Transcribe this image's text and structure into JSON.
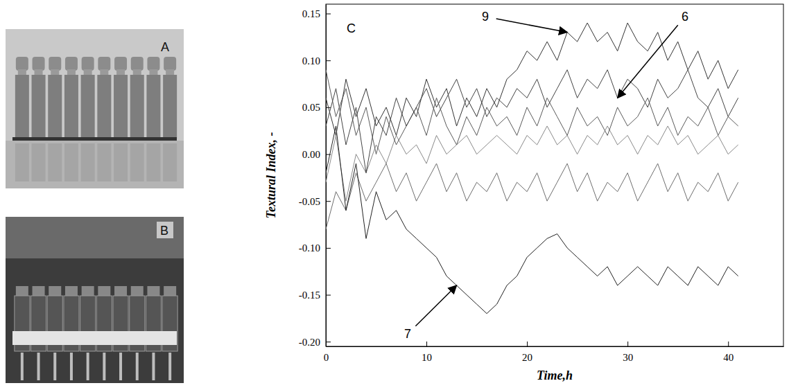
{
  "figure": {
    "panels": [
      "A",
      "B",
      "C"
    ]
  },
  "chart_data": {
    "type": "line",
    "x_label": "Time,h",
    "y_label": "Textural Index, -",
    "xlim": [
      0,
      45.5
    ],
    "ylim": [
      -0.205,
      0.16
    ],
    "xticks": [
      0,
      10,
      20,
      30,
      40
    ],
    "yticks": [
      {
        "value": -0.2,
        "label": "-0.20"
      },
      {
        "value": -0.15,
        "label": "-0.15"
      },
      {
        "value": -0.1,
        "label": "-0.10"
      },
      {
        "value": -0.05,
        "label": "-0.05"
      },
      {
        "value": 0,
        "label": "0.00"
      },
      {
        "value": 0.05,
        "label": "0.05"
      },
      {
        "value": 0.1,
        "label": "0.10"
      },
      {
        "value": 0.15,
        "label": "0.15"
      }
    ],
    "grid": false,
    "x": [
      0,
      1,
      2,
      3,
      4,
      5,
      6,
      7,
      8,
      9,
      10,
      11,
      12,
      13,
      14,
      15,
      16,
      17,
      18,
      19,
      20,
      21,
      22,
      23,
      24,
      25,
      26,
      27,
      28,
      29,
      30,
      31,
      32,
      33,
      34,
      35,
      36,
      37,
      38,
      39,
      40,
      41
    ],
    "series": [
      {
        "color": "#8a8a8a",
        "values": [
          -0.03,
          0.02,
          -0.05,
          0.0,
          -0.02,
          0.01,
          -0.01,
          0.02,
          0.0,
          0.01,
          -0.01,
          0.02,
          0.0,
          0.01,
          0.02,
          0.0,
          0.01,
          0.02,
          0.01,
          0.0,
          0.02,
          0.01,
          0.03,
          0.01,
          0.02,
          0.0,
          0.02,
          0.01,
          0.03,
          0.01,
          0.02,
          0.0,
          0.02,
          0.01,
          0.03,
          0.01,
          0.02,
          0.0,
          0.01,
          0.02,
          0.0,
          0.01
        ]
      },
      {
        "color": "#6e6e6e",
        "values": [
          -0.08,
          -0.04,
          -0.06,
          -0.02,
          -0.05,
          -0.03,
          -0.01,
          -0.04,
          -0.02,
          -0.05,
          -0.03,
          -0.01,
          -0.04,
          -0.02,
          -0.05,
          -0.03,
          -0.04,
          -0.02,
          -0.05,
          -0.03,
          -0.04,
          -0.02,
          -0.05,
          -0.03,
          -0.01,
          -0.04,
          -0.02,
          -0.05,
          -0.03,
          -0.04,
          -0.02,
          -0.05,
          -0.03,
          -0.01,
          -0.04,
          -0.02,
          -0.05,
          -0.03,
          -0.04,
          -0.02,
          -0.05,
          -0.03
        ]
      },
      {
        "color": "#5a5a5a",
        "values": [
          0.09,
          0.04,
          0.07,
          0.02,
          0.05,
          0.0,
          0.04,
          0.01,
          0.03,
          0.05,
          0.02,
          0.06,
          0.03,
          0.01,
          0.04,
          0.02,
          0.05,
          0.03,
          0.04,
          0.02,
          0.05,
          0.03,
          0.06,
          0.04,
          0.02,
          0.05,
          0.03,
          0.04,
          0.02,
          0.05,
          0.03,
          0.04,
          0.06,
          0.03,
          0.05,
          0.02,
          0.04,
          0.03,
          0.05,
          0.02,
          0.04,
          0.03
        ]
      },
      {
        "name": "9",
        "color": "#333333",
        "values": [
          0.06,
          0.02,
          0.08,
          0.04,
          0.07,
          0.03,
          0.05,
          0.02,
          0.06,
          0.04,
          0.08,
          0.05,
          0.07,
          0.03,
          0.06,
          0.04,
          0.07,
          0.05,
          0.08,
          0.09,
          0.11,
          0.1,
          0.12,
          0.1,
          0.13,
          0.12,
          0.14,
          0.12,
          0.13,
          0.11,
          0.14,
          0.12,
          0.11,
          0.13,
          0.1,
          0.12,
          0.09,
          0.11,
          0.08,
          0.1,
          0.07,
          0.09
        ]
      },
      {
        "name": "6",
        "color": "#444444",
        "values": [
          0.03,
          0.07,
          0.01,
          0.05,
          -0.02,
          0.04,
          0.02,
          0.06,
          0.03,
          0.05,
          0.07,
          0.04,
          0.06,
          0.08,
          0.05,
          0.07,
          0.04,
          0.06,
          0.05,
          0.07,
          0.06,
          0.08,
          0.05,
          0.07,
          0.09,
          0.06,
          0.08,
          0.07,
          0.09,
          0.06,
          0.08,
          0.07,
          0.05,
          0.08,
          0.06,
          0.07,
          0.09,
          0.06,
          0.05,
          0.07,
          0.04,
          0.06
        ]
      },
      {
        "name": "7",
        "color": "#222222",
        "values": [
          -0.02,
          0.03,
          -0.06,
          -0.01,
          -0.09,
          -0.04,
          -0.07,
          -0.06,
          -0.08,
          -0.09,
          -0.1,
          -0.11,
          -0.13,
          -0.14,
          -0.15,
          -0.16,
          -0.17,
          -0.16,
          -0.14,
          -0.13,
          -0.11,
          -0.1,
          -0.09,
          -0.085,
          -0.1,
          -0.11,
          -0.12,
          -0.13,
          -0.12,
          -0.14,
          -0.13,
          -0.12,
          -0.13,
          -0.14,
          -0.12,
          -0.13,
          -0.14,
          -0.12,
          -0.13,
          -0.14,
          -0.12,
          -0.13
        ]
      }
    ]
  }
}
